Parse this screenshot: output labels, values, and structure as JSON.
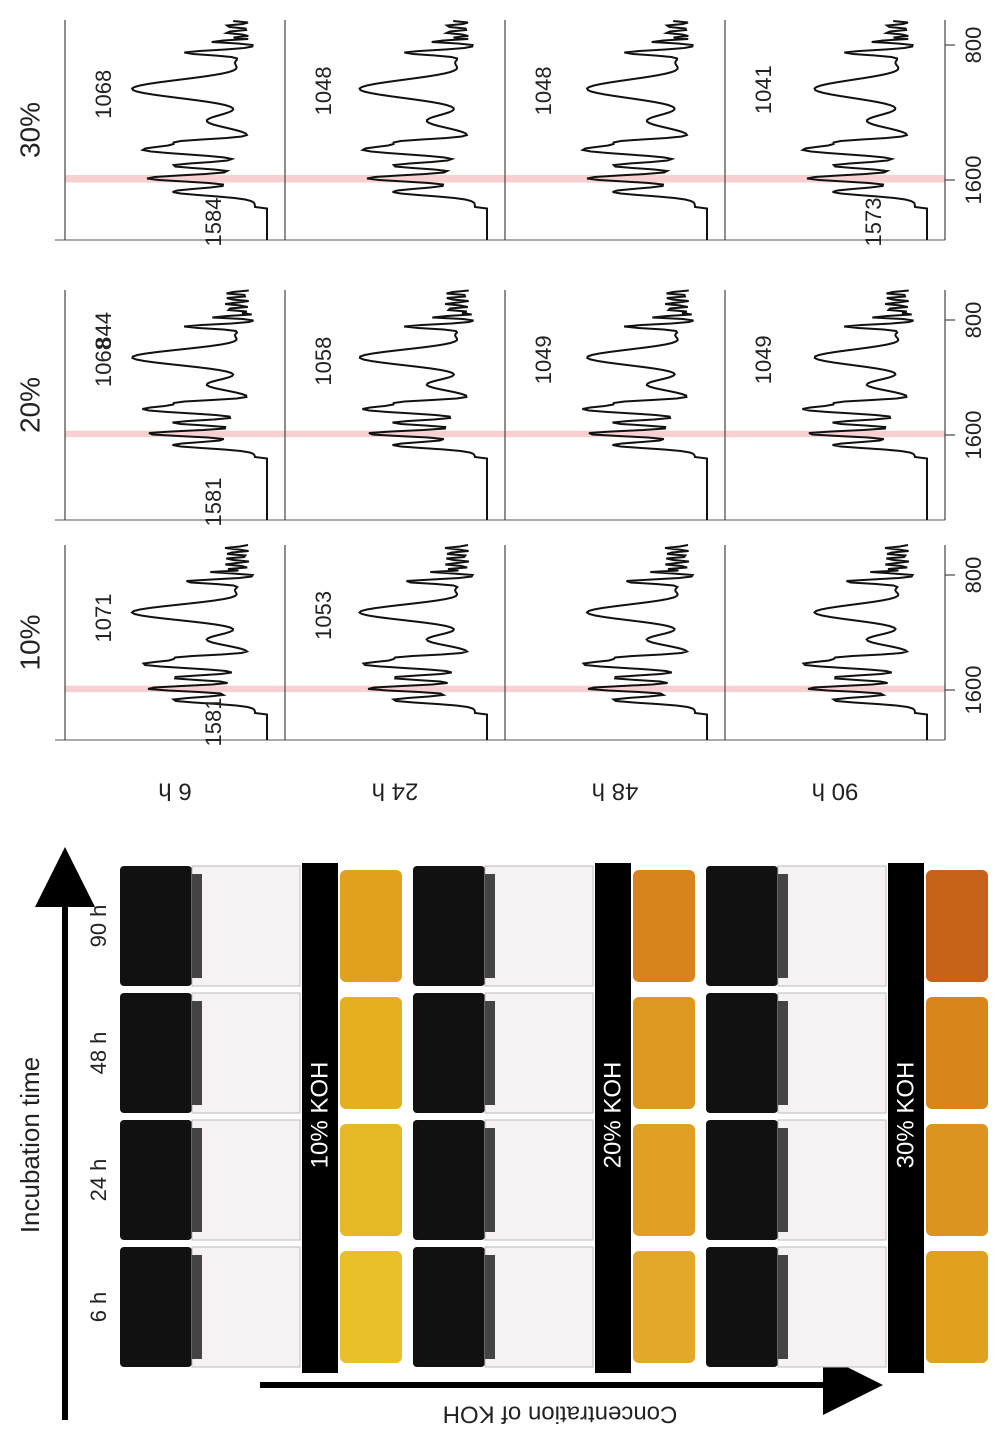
{
  "photo": {
    "axis_label": "Incubation time",
    "times": [
      "6 h",
      "24 h",
      "48 h",
      "90 h"
    ],
    "concentration_label": "Concentration of KOH",
    "bands": [
      "10% KOH",
      "20% KOH",
      "30% KOH"
    ]
  },
  "spectra": {
    "rows": [
      "6 h",
      "24 h",
      "48 h",
      "90 h"
    ],
    "x_ticks": [
      "1600",
      "800"
    ],
    "columns": [
      {
        "title": "10%",
        "peaks": [
          [
            "1581",
            "1071"
          ],
          [
            "1053"
          ],
          [],
          []
        ]
      },
      {
        "title": "20%",
        "peaks": [
          [
            "1581",
            "1068",
            "844"
          ],
          [
            "1058"
          ],
          [
            "1049"
          ],
          [
            "1049"
          ]
        ]
      },
      {
        "title": "30%",
        "peaks": [
          [
            "1584",
            "1068"
          ],
          [
            "1048"
          ],
          [
            "1048"
          ],
          [
            "1573",
            "1041"
          ]
        ]
      }
    ]
  }
}
